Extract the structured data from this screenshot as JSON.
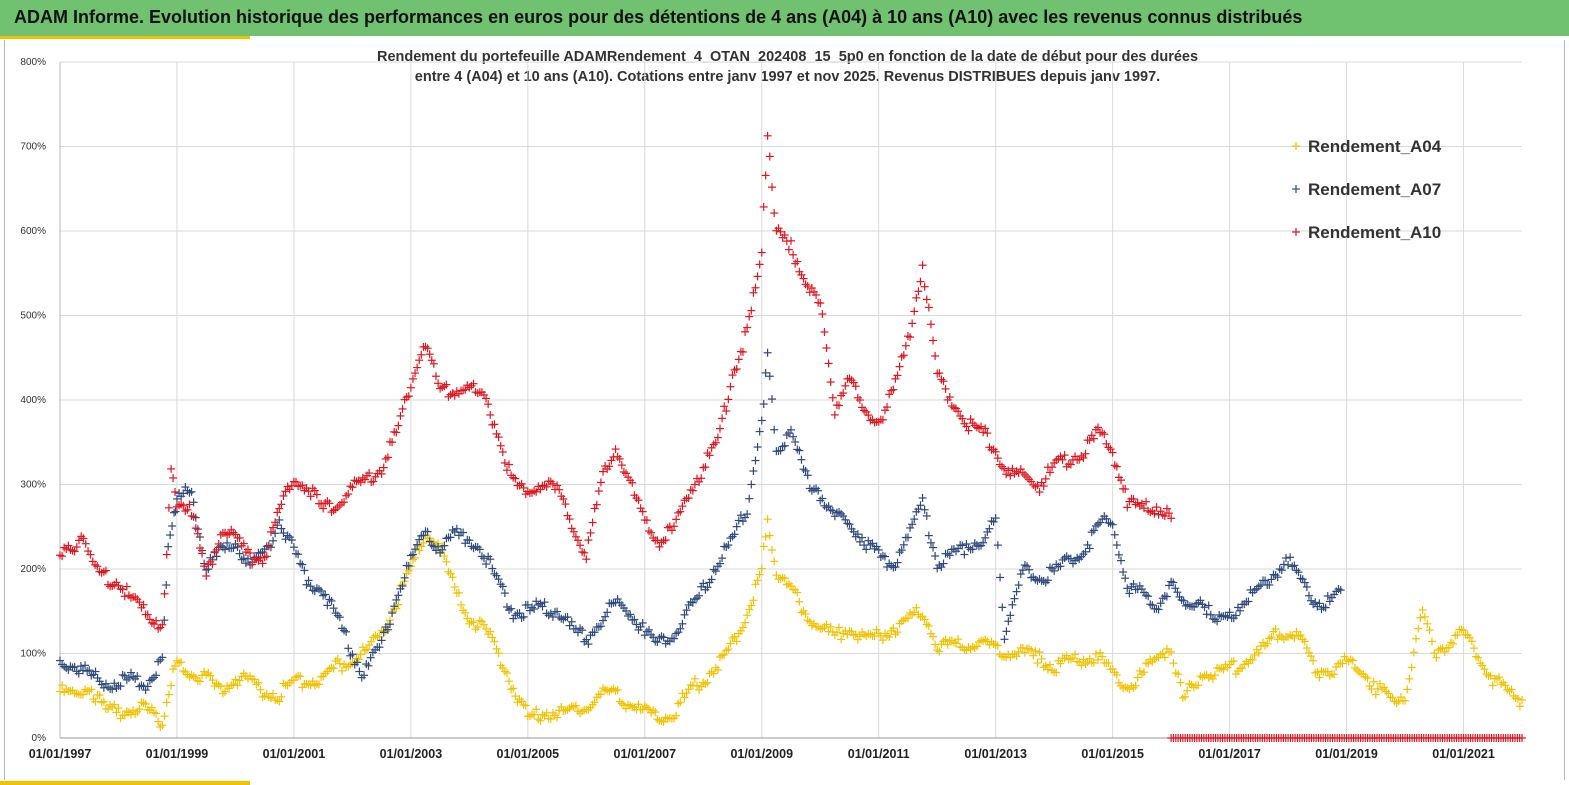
{
  "header": {
    "title": "ADAM Informe. Evolution historique des performances en euros pour des détentions de 4 ans (A04) à 10 ans (A10) avec les revenus connus distribués"
  },
  "colors": {
    "header_bg": "#70c170",
    "accent": "#f2c200",
    "A04": "#f2c200",
    "A07": "#2e4a7d",
    "A10": "#e0161f"
  },
  "chart_data": {
    "type": "scatter",
    "title_line1": "Rendement du portefeuille ADAMRendement_4_OTAN_202408_15_5p0  en fonction de la date de début pour des durées",
    "title_line2": "entre 4 (A04) et 10 ans (A10). Cotations entre janv 1997 et nov 2025. Revenus DISTRIBUES depuis janv 1997.",
    "x_ticks": [
      "01/01/1997",
      "01/01/1999",
      "01/01/2001",
      "01/01/2003",
      "01/01/2005",
      "01/01/2007",
      "01/01/2009",
      "01/01/2011",
      "01/01/2013",
      "01/01/2015",
      "01/01/2017",
      "01/01/2019",
      "01/01/2021"
    ],
    "y_ticks": [
      "0%",
      "100%",
      "200%",
      "300%",
      "400%",
      "500%",
      "600%",
      "700%",
      "800%"
    ],
    "xlim": [
      1997.0,
      2022.0
    ],
    "ylim": [
      0,
      800
    ],
    "grid": true,
    "legend_position": "top-right",
    "marker": "+",
    "series": [
      {
        "name": "Rendement_A04",
        "points": [
          [
            1997.0,
            55
          ],
          [
            1997.25,
            50
          ],
          [
            1997.5,
            62
          ],
          [
            1997.75,
            35
          ],
          [
            1998.0,
            30
          ],
          [
            1998.25,
            35
          ],
          [
            1998.5,
            32
          ],
          [
            1998.75,
            18
          ],
          [
            1998.9,
            70
          ],
          [
            1999.0,
            85
          ],
          [
            1999.25,
            78
          ],
          [
            1999.5,
            70
          ],
          [
            1999.75,
            55
          ],
          [
            2000.0,
            72
          ],
          [
            2000.25,
            65
          ],
          [
            2000.5,
            55
          ],
          [
            2000.75,
            52
          ],
          [
            2001.0,
            65
          ],
          [
            2001.25,
            70
          ],
          [
            2001.5,
            68
          ],
          [
            2001.75,
            85
          ],
          [
            2002.0,
            95
          ],
          [
            2002.25,
            100
          ],
          [
            2002.5,
            125
          ],
          [
            2002.75,
            160
          ],
          [
            2003.0,
            200
          ],
          [
            2003.25,
            245
          ],
          [
            2003.5,
            225
          ],
          [
            2003.75,
            175
          ],
          [
            2004.0,
            140
          ],
          [
            2004.25,
            130
          ],
          [
            2004.5,
            100
          ],
          [
            2004.75,
            60
          ],
          [
            2005.0,
            25
          ],
          [
            2005.25,
            30
          ],
          [
            2005.5,
            30
          ],
          [
            2005.75,
            30
          ],
          [
            2006.0,
            40
          ],
          [
            2006.25,
            50
          ],
          [
            2006.5,
            52
          ],
          [
            2006.75,
            40
          ],
          [
            2007.0,
            30
          ],
          [
            2007.25,
            25
          ],
          [
            2007.5,
            30
          ],
          [
            2007.75,
            55
          ],
          [
            2008.0,
            70
          ],
          [
            2008.25,
            85
          ],
          [
            2008.5,
            110
          ],
          [
            2008.75,
            150
          ],
          [
            2009.0,
            200
          ],
          [
            2009.1,
            255
          ],
          [
            2009.25,
            195
          ],
          [
            2009.5,
            175
          ],
          [
            2009.75,
            150
          ],
          [
            2010.0,
            130
          ],
          [
            2010.25,
            120
          ],
          [
            2010.5,
            130
          ],
          [
            2010.75,
            115
          ],
          [
            2011.0,
            120
          ],
          [
            2011.25,
            130
          ],
          [
            2011.5,
            140
          ],
          [
            2011.75,
            150
          ],
          [
            2012.0,
            110
          ],
          [
            2012.25,
            110
          ],
          [
            2012.5,
            110
          ],
          [
            2012.75,
            112
          ],
          [
            2013.0,
            108
          ],
          [
            2013.25,
            100
          ],
          [
            2013.5,
            100
          ],
          [
            2013.75,
            95
          ],
          [
            2014.0,
            85
          ],
          [
            2014.25,
            90
          ],
          [
            2014.5,
            95
          ],
          [
            2014.75,
            95
          ],
          [
            2015.0,
            75
          ],
          [
            2015.25,
            60
          ],
          [
            2015.5,
            75
          ],
          [
            2015.75,
            95
          ],
          [
            2016.0,
            110
          ],
          [
            2016.2,
            45
          ],
          [
            2016.5,
            75
          ],
          [
            2016.75,
            75
          ],
          [
            2017.0,
            80
          ],
          [
            2017.25,
            90
          ],
          [
            2017.5,
            100
          ],
          [
            2017.75,
            120
          ],
          [
            2018.0,
            125
          ],
          [
            2018.25,
            115
          ],
          [
            2018.5,
            80
          ],
          [
            2018.75,
            80
          ],
          [
            2019.0,
            90
          ],
          [
            2019.25,
            80
          ],
          [
            2019.5,
            60
          ],
          [
            2019.75,
            45
          ],
          [
            2020.0,
            50
          ],
          [
            2020.3,
            150
          ],
          [
            2020.5,
            100
          ],
          [
            2020.75,
            115
          ],
          [
            2021.0,
            125
          ],
          [
            2021.25,
            100
          ],
          [
            2021.5,
            70
          ],
          [
            2021.75,
            55
          ],
          [
            2022.0,
            45
          ]
        ]
      },
      {
        "name": "Rendement_A07",
        "points": [
          [
            1997.0,
            90
          ],
          [
            1997.25,
            85
          ],
          [
            1997.5,
            75
          ],
          [
            1997.75,
            65
          ],
          [
            1998.0,
            65
          ],
          [
            1998.25,
            70
          ],
          [
            1998.5,
            65
          ],
          [
            1998.75,
            90
          ],
          [
            1998.85,
            220
          ],
          [
            1998.95,
            270
          ],
          [
            1999.0,
            280
          ],
          [
            1999.25,
            295
          ],
          [
            1999.5,
            200
          ],
          [
            1999.75,
            220
          ],
          [
            2000.0,
            230
          ],
          [
            2000.25,
            205
          ],
          [
            2000.5,
            215
          ],
          [
            2000.75,
            260
          ],
          [
            2001.0,
            220
          ],
          [
            2001.25,
            185
          ],
          [
            2001.5,
            175
          ],
          [
            2001.75,
            140
          ],
          [
            2002.0,
            100
          ],
          [
            2002.2,
            75
          ],
          [
            2002.5,
            110
          ],
          [
            2002.75,
            165
          ],
          [
            2003.0,
            210
          ],
          [
            2003.25,
            240
          ],
          [
            2003.5,
            225
          ],
          [
            2003.75,
            240
          ],
          [
            2004.0,
            235
          ],
          [
            2004.25,
            220
          ],
          [
            2004.5,
            180
          ],
          [
            2004.75,
            150
          ],
          [
            2005.0,
            150
          ],
          [
            2005.25,
            155
          ],
          [
            2005.5,
            150
          ],
          [
            2005.75,
            130
          ],
          [
            2006.0,
            115
          ],
          [
            2006.25,
            140
          ],
          [
            2006.5,
            160
          ],
          [
            2006.75,
            150
          ],
          [
            2007.0,
            125
          ],
          [
            2007.25,
            110
          ],
          [
            2007.5,
            120
          ],
          [
            2007.75,
            150
          ],
          [
            2008.0,
            175
          ],
          [
            2008.25,
            210
          ],
          [
            2008.5,
            235
          ],
          [
            2008.75,
            270
          ],
          [
            2009.0,
            380
          ],
          [
            2009.1,
            450
          ],
          [
            2009.25,
            340
          ],
          [
            2009.5,
            360
          ],
          [
            2009.75,
            310
          ],
          [
            2010.0,
            290
          ],
          [
            2010.25,
            260
          ],
          [
            2010.5,
            255
          ],
          [
            2010.75,
            235
          ],
          [
            2011.0,
            215
          ],
          [
            2011.25,
            205
          ],
          [
            2011.5,
            240
          ],
          [
            2011.75,
            280
          ],
          [
            2012.0,
            205
          ],
          [
            2012.25,
            215
          ],
          [
            2012.5,
            225
          ],
          [
            2012.75,
            235
          ],
          [
            2013.0,
            255
          ],
          [
            2013.15,
            120
          ],
          [
            2013.25,
            150
          ],
          [
            2013.5,
            200
          ],
          [
            2013.75,
            190
          ],
          [
            2014.0,
            195
          ],
          [
            2014.25,
            210
          ],
          [
            2014.5,
            220
          ],
          [
            2014.75,
            250
          ],
          [
            2015.0,
            260
          ],
          [
            2015.25,
            180
          ],
          [
            2015.5,
            170
          ],
          [
            2015.75,
            155
          ],
          [
            2016.0,
            180
          ],
          [
            2016.25,
            155
          ],
          [
            2016.5,
            165
          ],
          [
            2016.75,
            135
          ],
          [
            2017.0,
            145
          ],
          [
            2017.25,
            165
          ],
          [
            2017.5,
            175
          ],
          [
            2017.75,
            195
          ],
          [
            2018.0,
            210
          ],
          [
            2018.25,
            185
          ],
          [
            2018.5,
            160
          ],
          [
            2018.75,
            160
          ],
          [
            2018.9,
            175
          ]
        ]
      },
      {
        "name": "Rendement_A10",
        "points": [
          [
            1997.0,
            225
          ],
          [
            1997.25,
            215
          ],
          [
            1997.4,
            245
          ],
          [
            1997.6,
            200
          ],
          [
            1997.75,
            190
          ],
          [
            1998.0,
            185
          ],
          [
            1998.25,
            160
          ],
          [
            1998.5,
            145
          ],
          [
            1998.75,
            135
          ],
          [
            1998.9,
            310
          ],
          [
            1999.0,
            280
          ],
          [
            1999.25,
            270
          ],
          [
            1999.5,
            190
          ],
          [
            1999.75,
            245
          ],
          [
            2000.0,
            240
          ],
          [
            2000.25,
            210
          ],
          [
            2000.5,
            215
          ],
          [
            2000.75,
            270
          ],
          [
            2001.0,
            305
          ],
          [
            2001.25,
            295
          ],
          [
            2001.5,
            270
          ],
          [
            2001.75,
            280
          ],
          [
            2002.0,
            295
          ],
          [
            2002.25,
            305
          ],
          [
            2002.5,
            320
          ],
          [
            2002.75,
            360
          ],
          [
            2003.0,
            420
          ],
          [
            2003.25,
            470
          ],
          [
            2003.5,
            410
          ],
          [
            2003.75,
            410
          ],
          [
            2004.0,
            415
          ],
          [
            2004.25,
            400
          ],
          [
            2004.5,
            360
          ],
          [
            2004.75,
            300
          ],
          [
            2005.0,
            290
          ],
          [
            2005.25,
            305
          ],
          [
            2005.5,
            290
          ],
          [
            2005.75,
            255
          ],
          [
            2006.0,
            215
          ],
          [
            2006.25,
            300
          ],
          [
            2006.5,
            345
          ],
          [
            2006.75,
            300
          ],
          [
            2007.0,
            255
          ],
          [
            2007.25,
            235
          ],
          [
            2007.5,
            245
          ],
          [
            2007.75,
            290
          ],
          [
            2008.0,
            320
          ],
          [
            2008.25,
            350
          ],
          [
            2008.5,
            430
          ],
          [
            2008.75,
            480
          ],
          [
            2009.0,
            570
          ],
          [
            2009.1,
            720
          ],
          [
            2009.25,
            600
          ],
          [
            2009.5,
            580
          ],
          [
            2009.75,
            545
          ],
          [
            2010.0,
            510
          ],
          [
            2010.25,
            390
          ],
          [
            2010.5,
            430
          ],
          [
            2010.75,
            380
          ],
          [
            2011.0,
            375
          ],
          [
            2011.25,
            410
          ],
          [
            2011.5,
            470
          ],
          [
            2011.75,
            560
          ],
          [
            2012.0,
            430
          ],
          [
            2012.25,
            400
          ],
          [
            2012.5,
            370
          ],
          [
            2012.75,
            365
          ],
          [
            2013.0,
            340
          ],
          [
            2013.25,
            310
          ],
          [
            2013.5,
            310
          ],
          [
            2013.75,
            300
          ],
          [
            2014.0,
            320
          ],
          [
            2014.25,
            330
          ],
          [
            2014.5,
            340
          ],
          [
            2014.75,
            360
          ],
          [
            2015.0,
            340
          ],
          [
            2015.25,
            280
          ],
          [
            2015.5,
            270
          ],
          [
            2015.75,
            275
          ],
          [
            2016.0,
            260
          ]
        ]
      }
    ]
  }
}
